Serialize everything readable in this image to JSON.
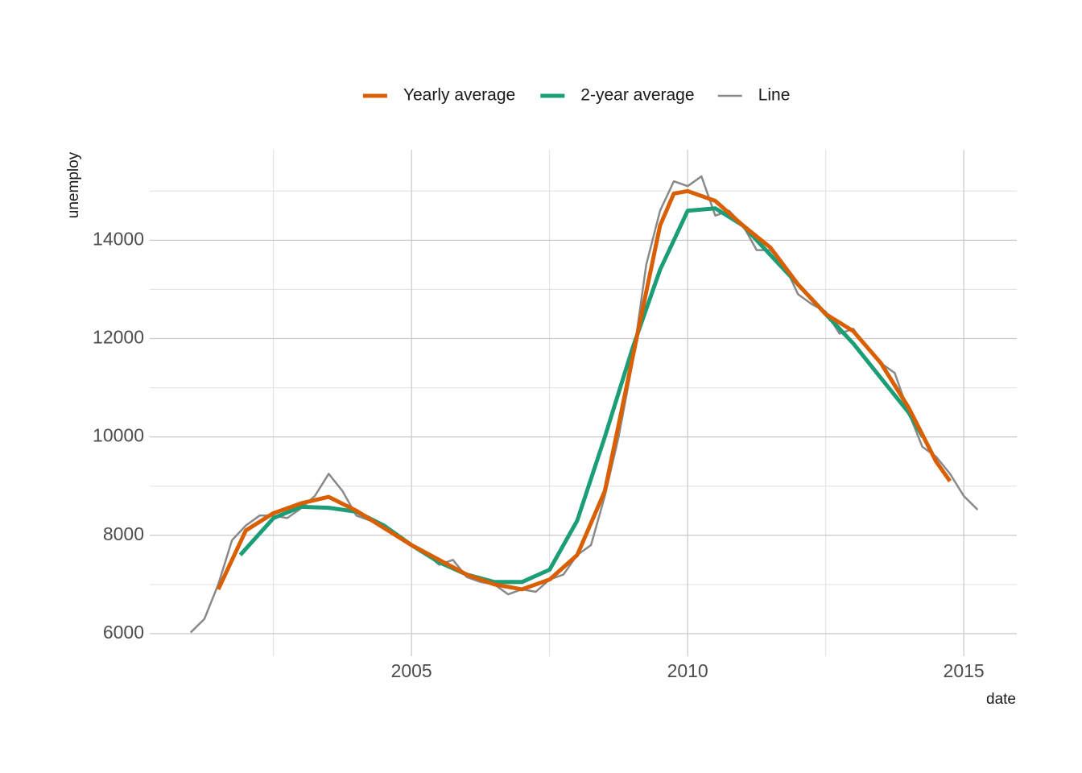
{
  "chart_data": {
    "type": "line",
    "x_label": "date",
    "y_label": "unemploy",
    "xlim": [
      2000.26,
      2015.96
    ],
    "ylim": [
      5540,
      15840
    ],
    "xticks": [
      2005,
      2010,
      2015
    ],
    "yticks": [
      6000,
      8000,
      10000,
      12000,
      14000
    ],
    "xminorticks": [
      2002.5,
      2007.5,
      2012.5
    ],
    "yminorticks": [
      7000,
      9000,
      11000,
      13000,
      15000
    ],
    "grid": true,
    "legend": "top",
    "series": [
      {
        "name": "Yearly average",
        "color": "#d95f02",
        "x": [
          2001.5,
          2002.0,
          2002.5,
          2003.0,
          2003.5,
          2004.0,
          2004.5,
          2005.0,
          2005.5,
          2006.0,
          2006.5,
          2007.0,
          2007.5,
          2008.0,
          2008.5,
          2009.0,
          2009.5,
          2009.75,
          2010.0,
          2010.5,
          2011.0,
          2011.5,
          2012.0,
          2012.5,
          2013.0,
          2013.5,
          2014.0,
          2014.5,
          2014.75
        ],
        "values": [
          6900,
          8100,
          8450,
          8650,
          8780,
          8500,
          8150,
          7800,
          7500,
          7200,
          7000,
          6900,
          7100,
          7600,
          8900,
          11600,
          14300,
          14950,
          15000,
          14800,
          14300,
          13850,
          13100,
          12500,
          12150,
          11500,
          10600,
          9500,
          9100
        ]
      },
      {
        "name": "2-year average",
        "color": "#1b9e77",
        "x": [
          2001.9,
          2002.5,
          2003.0,
          2003.5,
          2004.0,
          2004.5,
          2005.0,
          2005.5,
          2006.0,
          2006.5,
          2007.0,
          2007.5,
          2008.0,
          2008.5,
          2009.0,
          2009.5,
          2010.0,
          2010.5,
          2011.0,
          2011.5,
          2012.0,
          2012.5,
          2013.0,
          2013.5,
          2014.0,
          2014.26
        ],
        "values": [
          7600,
          8350,
          8580,
          8560,
          8480,
          8200,
          7800,
          7450,
          7200,
          7050,
          7050,
          7300,
          8300,
          10000,
          11800,
          13400,
          14600,
          14650,
          14300,
          13700,
          13100,
          12500,
          11900,
          11200,
          10500,
          10000
        ]
      },
      {
        "name": "Line",
        "color": "#898989",
        "x": [
          2001.0,
          2001.25,
          2001.5,
          2001.75,
          2002.0,
          2002.25,
          2002.5,
          2002.75,
          2003.0,
          2003.25,
          2003.5,
          2003.75,
          2004.0,
          2004.25,
          2004.5,
          2004.75,
          2005.0,
          2005.25,
          2005.5,
          2005.75,
          2006.0,
          2006.25,
          2006.5,
          2006.75,
          2007.0,
          2007.25,
          2007.5,
          2007.75,
          2008.0,
          2008.25,
          2008.5,
          2008.75,
          2009.0,
          2009.25,
          2009.5,
          2009.75,
          2010.0,
          2010.25,
          2010.5,
          2010.75,
          2011.0,
          2011.25,
          2011.5,
          2011.75,
          2012.0,
          2012.25,
          2012.5,
          2012.75,
          2013.0,
          2013.25,
          2013.5,
          2013.75,
          2014.0,
          2014.25,
          2014.5,
          2014.75,
          2015.0,
          2015.25
        ],
        "values": [
          6023,
          6300,
          7000,
          7900,
          8200,
          8400,
          8400,
          8350,
          8550,
          8800,
          9250,
          8900,
          8400,
          8300,
          8150,
          8000,
          7800,
          7650,
          7400,
          7500,
          7150,
          7050,
          7000,
          6800,
          6900,
          6850,
          7100,
          7200,
          7600,
          7800,
          8800,
          10000,
          11500,
          13500,
          14600,
          15200,
          15100,
          15300,
          14500,
          14600,
          14300,
          13800,
          13800,
          13500,
          12900,
          12700,
          12550,
          12100,
          12200,
          11800,
          11500,
          11300,
          10500,
          9800,
          9600,
          9250,
          8800,
          8520
        ]
      }
    ]
  }
}
